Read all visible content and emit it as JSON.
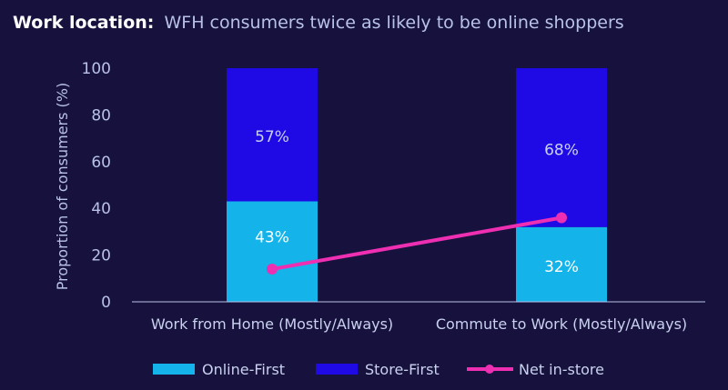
{
  "title": {
    "bold": "Work location:",
    "rest": "WFH consumers twice as likely to be online shoppers"
  },
  "colors": {
    "background": "#17123d",
    "online": "#14b4eb",
    "store": "#1f0ae6",
    "net": "#ee2fb2",
    "axis": "#b8c2e8"
  },
  "chart_data": {
    "type": "bar",
    "stacked": true,
    "categories": [
      "Work from Home (Mostly/Always)",
      "Commute to Work (Mostly/Always)"
    ],
    "series": [
      {
        "name": "Online-First",
        "values": [
          43,
          32
        ],
        "labels": [
          "43%",
          "32%"
        ],
        "color": "#14b4eb"
      },
      {
        "name": "Store-First",
        "values": [
          57,
          68
        ],
        "labels": [
          "57%",
          "68%"
        ],
        "color": "#1f0ae6"
      }
    ],
    "line_series": {
      "name": "Net in-store",
      "values": [
        14,
        36
      ],
      "color": "#ee2fb2"
    },
    "ylabel": "Proportion of consumers (%)",
    "ylim": [
      0,
      100
    ],
    "yticks": [
      0,
      20,
      40,
      60,
      80,
      100
    ],
    "legend": "bottom"
  }
}
